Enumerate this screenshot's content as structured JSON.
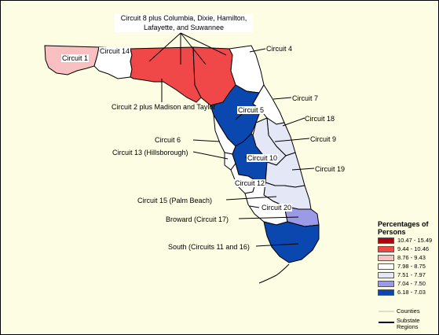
{
  "labels": {
    "circuit8": "Circuit 8 plus Columbia, Dixie, Hamilton, Lafayette, and Suwannee",
    "circuit4": "Circuit 4",
    "circuit1": "Circuit 1",
    "circuit14": "Circuit 14",
    "circuit2": "Circuit 2 plus Madison and Taylor",
    "circuit7": "Circuit 7",
    "circuit5": "Circuit 5",
    "circuit18": "Circuit 18",
    "circuit6": "Circuit 6",
    "circuit9": "Circuit 9",
    "circuit13": "Circuit 13 (Hillsborough)",
    "circuit10": "Circuit 10",
    "circuit19": "Circuit 19",
    "circuit12": "Circuit 12",
    "circuit15": "Circuit 15 (Palm Beach)",
    "circuit20": "Circuit 20",
    "broward": "Broward (Circuit 17)",
    "south": "South (Circuits 11 and 16)"
  },
  "legend": {
    "title": "Percentages of Persons",
    "items": [
      {
        "range": "10.47 - 15.49",
        "color": "#b00010"
      },
      {
        "range": "9.44 - 10.46",
        "color": "#f04848"
      },
      {
        "range": "8.76 - 9.43",
        "color": "#f8c0c0"
      },
      {
        "range": "7.98 - 8.75",
        "color": "#ffffff"
      },
      {
        "range": "7.51 - 7.97",
        "color": "#e4e8f6"
      },
      {
        "range": "7.04 - 7.50",
        "color": "#9a9ae6"
      },
      {
        "range": "6.18 - 7.03",
        "color": "#0a48b0"
      }
    ],
    "counties_label": "Counties",
    "substate_label": "Substate Regions"
  },
  "colors": {
    "background": "#fdfde3",
    "red": "#f04848",
    "pink": "#f8c0c0",
    "white": "#ffffff",
    "lightblue": "#e4e8f6",
    "purple": "#9a9ae6",
    "darkblue": "#0a48b0"
  }
}
